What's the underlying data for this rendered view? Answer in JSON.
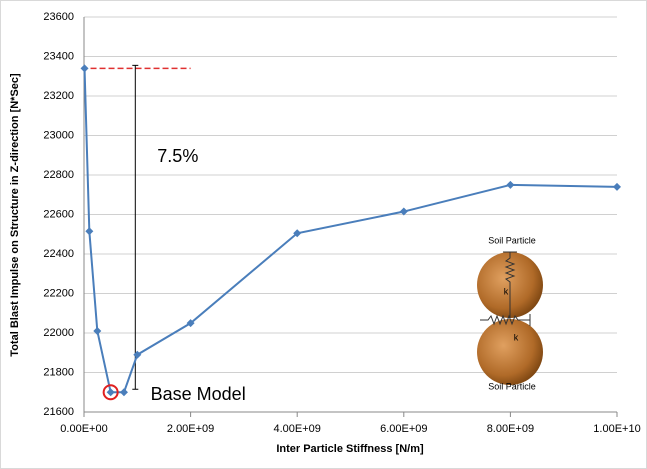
{
  "chart_data": {
    "type": "line",
    "x_label": "Inter Particle Stiffness [N/m]",
    "y_label": "Total Blast Impulse on Structure in Z-direction [N*Sec]",
    "x": [
      10000000,
      100000000,
      250000000,
      500000000,
      750000000,
      1000000000,
      2000000000,
      4000000000,
      6000000000,
      8000000000,
      10000000000
    ],
    "series": [
      {
        "color": "#4a7ebb",
        "values": [
          23340,
          22515,
          22010,
          21700,
          21700,
          21890,
          22050,
          22505,
          22615,
          22750,
          22740
        ]
      }
    ],
    "xlim": [
      0,
      10000000000
    ],
    "xticks": [
      {
        "value": 0,
        "label": "0.00E+00"
      },
      {
        "value": 2000000000,
        "label": "2.00E+09"
      },
      {
        "value": 4000000000,
        "label": "4.00E+09"
      },
      {
        "value": 6000000000,
        "label": "6.00E+09"
      },
      {
        "value": 8000000000,
        "label": "8.00E+09"
      },
      {
        "value": 10000000000,
        "label": "1.00E+10"
      }
    ],
    "ylim": [
      21600,
      23600
    ],
    "yticks": [
      21600,
      21800,
      22000,
      22200,
      22400,
      22600,
      22800,
      23000,
      23200,
      23400,
      23600
    ],
    "grid": true,
    "annotations": {
      "percent": "7.5%",
      "base_model": "Base Model",
      "particle_top": "Soil Particle",
      "particle_bottom": "Soil Particle",
      "spring_vertical": "k",
      "spring_horizontal": "k"
    }
  }
}
